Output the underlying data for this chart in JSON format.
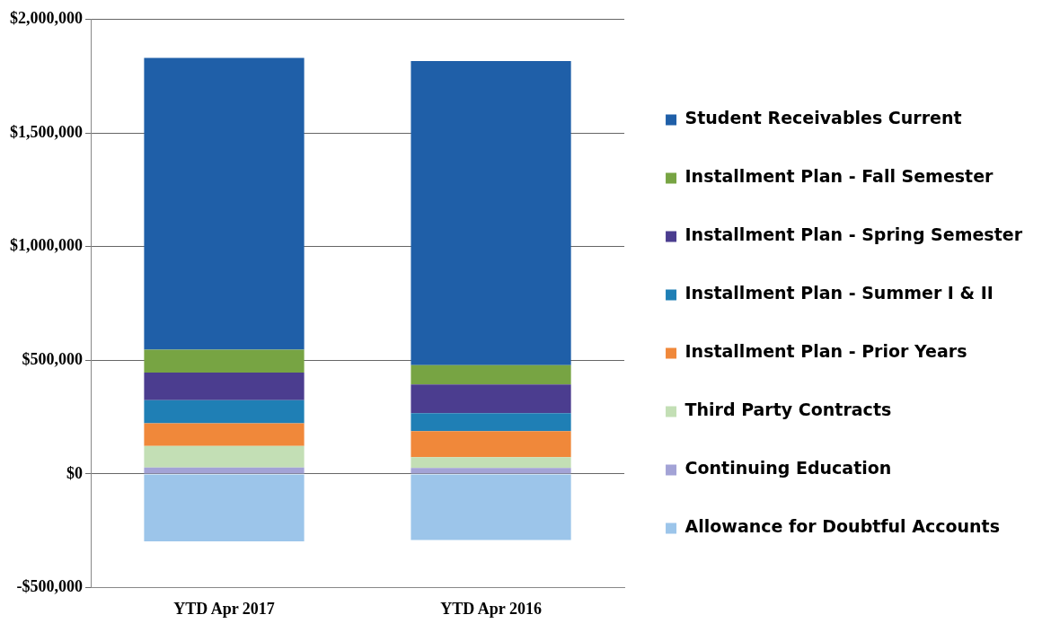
{
  "chart_data": {
    "type": "bar",
    "stacked": true,
    "categories": [
      "YTD Apr 2017",
      "YTD Apr 2016"
    ],
    "series": [
      {
        "name": "Allowance for Doubtful Accounts",
        "color": "#9cc5ea",
        "values": [
          -297000,
          -291000
        ]
      },
      {
        "name": "Continuing Education",
        "color": "#a3a3d6",
        "values": [
          28000,
          26000
        ]
      },
      {
        "name": "Third Party Contracts",
        "color": "#c3dfb5",
        "values": [
          95000,
          48000
        ]
      },
      {
        "name": "Installment Plan - Prior Years",
        "color": "#f0883a",
        "values": [
          100000,
          114000
        ]
      },
      {
        "name": "Installment Plan - Summer I & II",
        "color": "#1f7fb5",
        "values": [
          102000,
          79000
        ]
      },
      {
        "name": "Installment Plan - Spring Semester",
        "color": "#4b3d8f",
        "values": [
          121000,
          127000
        ]
      },
      {
        "name": "Installment Plan - Fall Semester",
        "color": "#77a443",
        "values": [
          101000,
          85000
        ]
      },
      {
        "name": "Student Receivables Current",
        "color": "#1f5fa8",
        "values": [
          1284000,
          1338000
        ]
      }
    ],
    "ylim": [
      -500000,
      2000000
    ],
    "yticks": [
      {
        "value": -500000,
        "label": "-$500,000"
      },
      {
        "value": 0,
        "label": "$0"
      },
      {
        "value": 500000,
        "label": "$500,000"
      },
      {
        "value": 1000000,
        "label": "$1,000,000"
      },
      {
        "value": 1500000,
        "label": "$1,500,000"
      },
      {
        "value": 2000000,
        "label": "$2,000,000"
      }
    ],
    "grid": "y",
    "legend": "right"
  }
}
